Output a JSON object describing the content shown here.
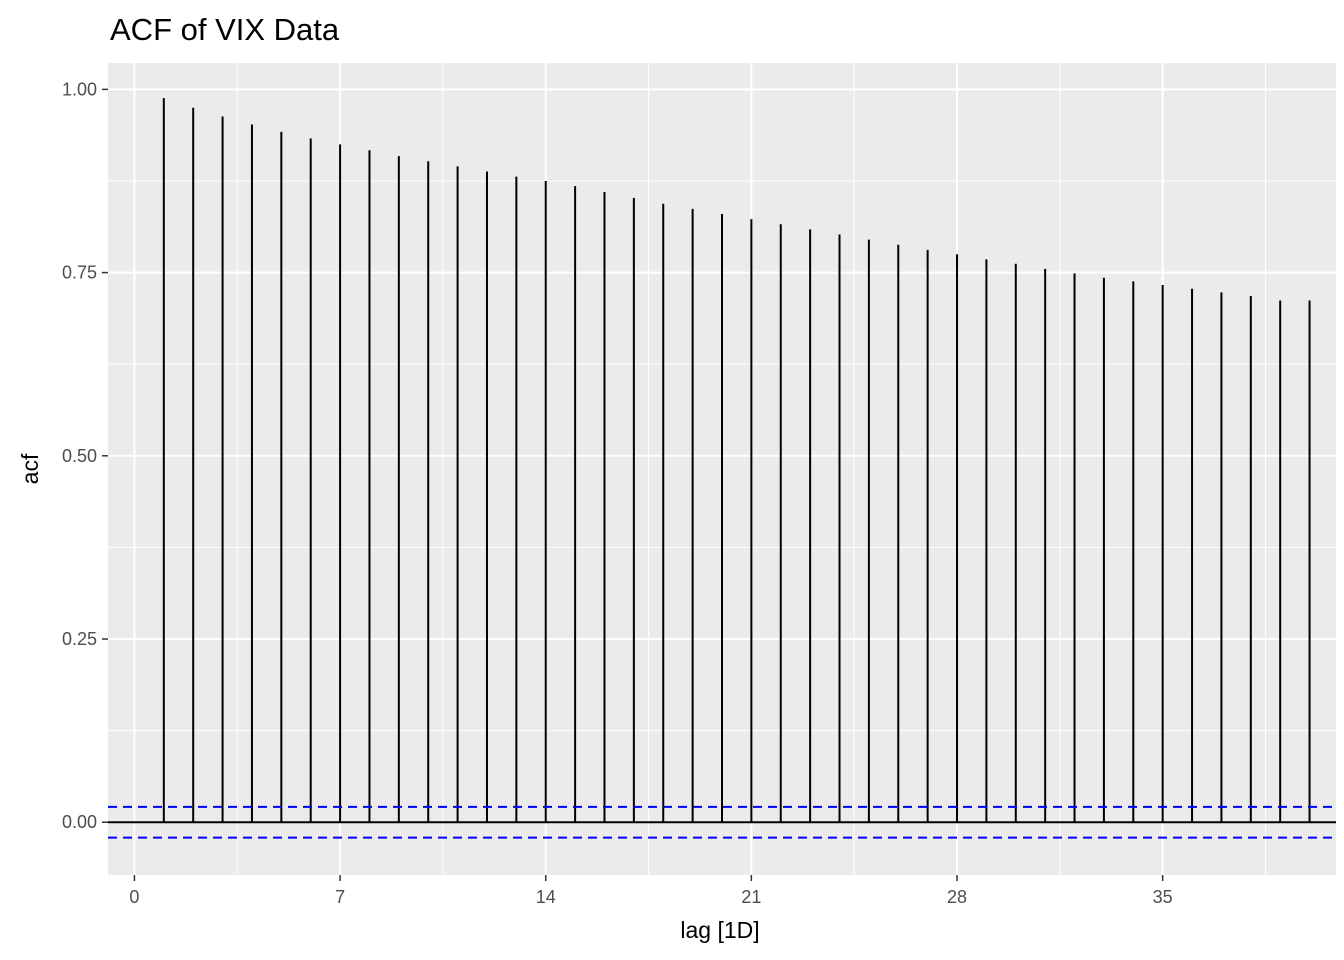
{
  "chart_data": {
    "type": "bar",
    "title": "ACF of VIX Data",
    "xlabel": "lag [1D]",
    "ylabel": "acf",
    "x_ticks": [
      0,
      7,
      14,
      21,
      28,
      35
    ],
    "y_ticks": [
      "0.00",
      "0.25",
      "0.50",
      "0.75",
      "1.00"
    ],
    "y_tick_values": [
      0,
      0.25,
      0.5,
      0.75,
      1.0
    ],
    "xlim": [
      -0.9,
      40.9
    ],
    "ylim": [
      -0.072,
      1.036
    ],
    "grid": true,
    "confidence_bound": 0.021,
    "lags": [
      1,
      2,
      3,
      4,
      5,
      6,
      7,
      8,
      9,
      10,
      11,
      12,
      13,
      14,
      15,
      16,
      17,
      18,
      19,
      20,
      21,
      22,
      23,
      24,
      25,
      26,
      27,
      28,
      29,
      30,
      31,
      32,
      33,
      34,
      35,
      36,
      37,
      38,
      39,
      40
    ],
    "values": [
      0.988,
      0.975,
      0.963,
      0.952,
      0.942,
      0.933,
      0.925,
      0.917,
      0.909,
      0.902,
      0.895,
      0.888,
      0.881,
      0.875,
      0.868,
      0.86,
      0.852,
      0.844,
      0.837,
      0.83,
      0.823,
      0.816,
      0.809,
      0.802,
      0.795,
      0.788,
      0.781,
      0.775,
      0.768,
      0.762,
      0.755,
      0.749,
      0.743,
      0.738,
      0.733,
      0.728,
      0.723,
      0.718,
      0.712,
      0.712
    ],
    "colors": {
      "panel": "#ebebeb",
      "grid": "#ffffff",
      "bar": "#000000",
      "bound": "#0000ff",
      "tick_text": "#4d4d4d"
    }
  }
}
